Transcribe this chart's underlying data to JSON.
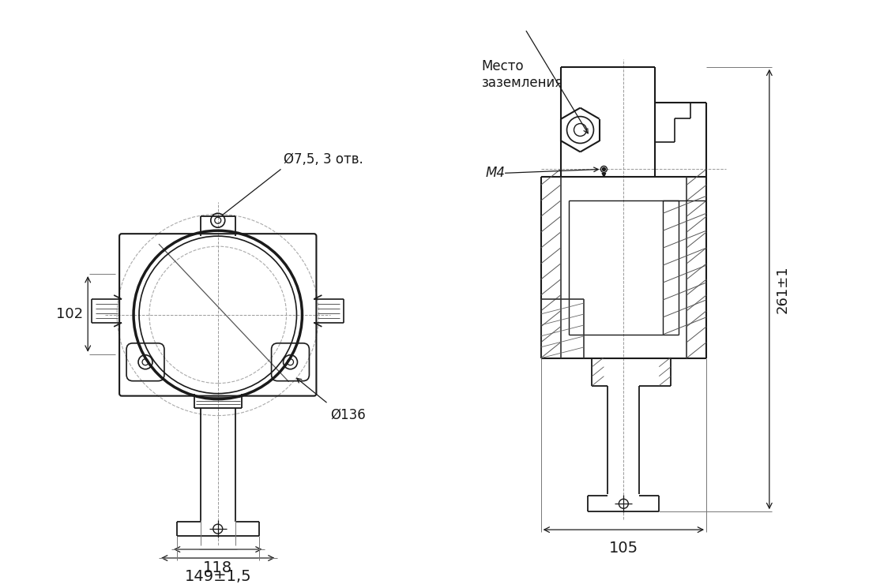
{
  "bg_color": "#ffffff",
  "lc": "#1a1a1a",
  "dc": "#1a1a1a",
  "gc": "#777777",
  "annotations": {
    "d75": "Ø7,5, 3 отв.",
    "d136": "Ø136",
    "dim_102": "102",
    "dim_118": "118",
    "dim_149": "149±1,5",
    "dim_261": "261±1",
    "dim_105": "105",
    "mesto": "Место\nзаземления",
    "m4": "M4"
  },
  "fs": 13,
  "fs_s": 12
}
